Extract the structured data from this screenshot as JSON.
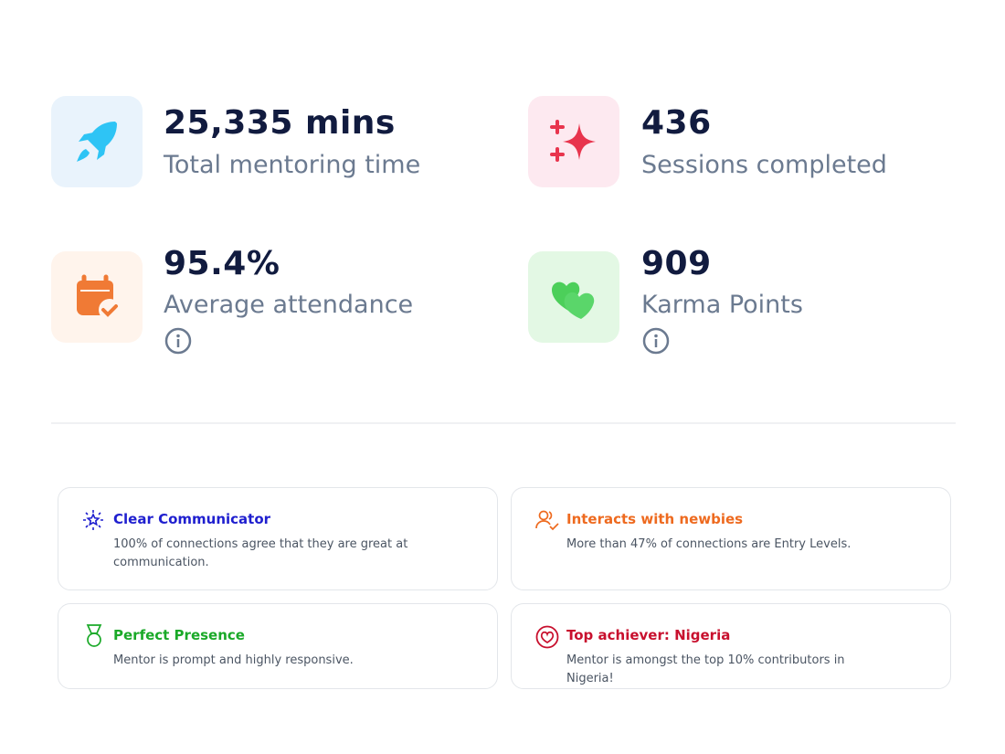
{
  "stats": [
    {
      "value": "25,335 mins",
      "label": "Total mentoring time"
    },
    {
      "value": "436",
      "label": "Sessions completed"
    },
    {
      "value": "95.4%",
      "label": "Average attendance"
    },
    {
      "value": "909",
      "label": "Karma Points"
    }
  ],
  "badges": [
    {
      "title": "Clear Communicator",
      "description": "100% of connections agree that they are great at communication."
    },
    {
      "title": "Interacts with newbies",
      "description": "More than 47% of connections are Entry Levels."
    },
    {
      "title": "Perfect Presence",
      "description": "Mentor is prompt and highly responsive."
    },
    {
      "title": "Top achiever: Nigeria",
      "description": "Mentor is amongst the top 10% contributors in Nigeria!"
    }
  ]
}
